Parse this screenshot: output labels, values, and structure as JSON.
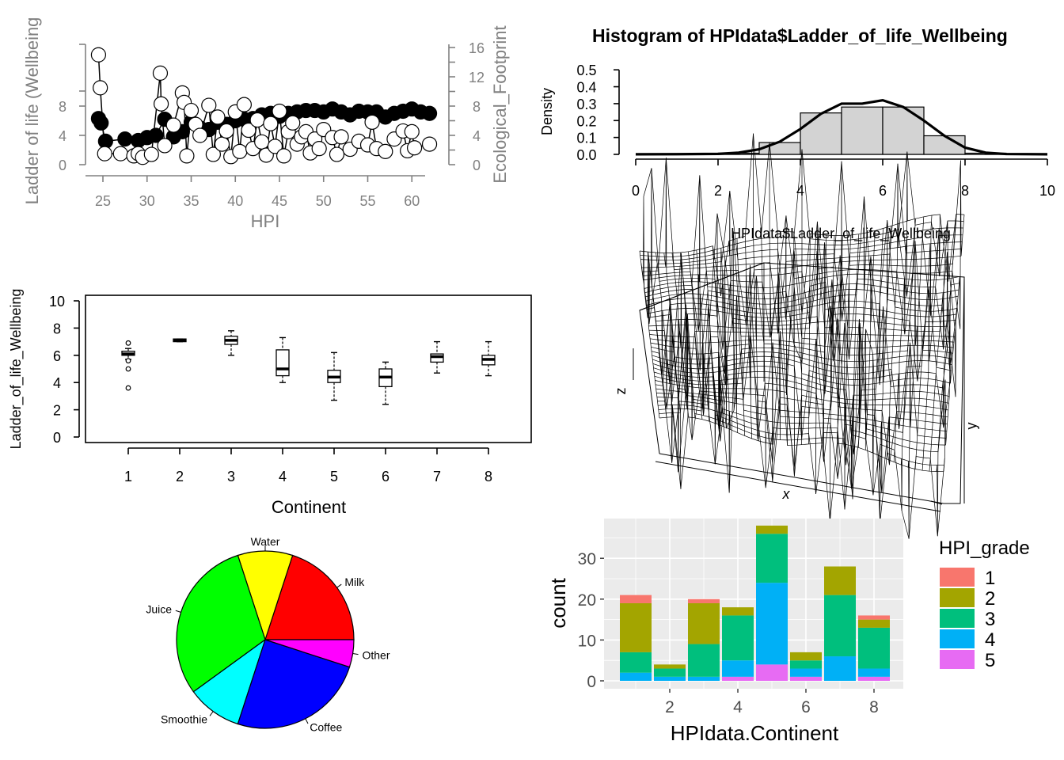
{
  "chart_data": [
    {
      "type": "scatter",
      "panel": "dual-axis-hpi",
      "xlabel": "HPI",
      "ylabel_left": "Ladder of life (Wellbeing",
      "ylabel_right": "Ecological_Footprint",
      "xticks": [
        "25",
        "30",
        "35",
        "40",
        "45",
        "50",
        "55",
        "60"
      ],
      "yticks_left": [
        "0",
        "4",
        "8"
      ],
      "yticks_right": [
        "0",
        "4",
        "8",
        "12",
        "16"
      ],
      "xlim": [
        23,
        63
      ],
      "ylim_left": [
        0,
        16
      ],
      "ylim_right": [
        0,
        16
      ],
      "series": [
        {
          "name": "Ladder_of_life_Wellbeing",
          "color": "#000000",
          "points": [
            [
              24.5,
              6.3
            ],
            [
              24.8,
              5.7
            ],
            [
              25.3,
              3.2
            ],
            [
              27.5,
              3.5
            ],
            [
              29,
              3.3
            ],
            [
              30,
              3.7
            ],
            [
              31,
              4
            ],
            [
              32,
              6.2
            ],
            [
              33,
              3.8
            ],
            [
              34,
              4.5
            ],
            [
              35,
              5.8
            ],
            [
              36,
              5
            ],
            [
              37,
              4.8
            ],
            [
              38,
              5.8
            ],
            [
              39,
              5.5
            ],
            [
              40,
              6
            ],
            [
              41,
              6.2
            ],
            [
              42,
              6.3
            ],
            [
              43,
              6.8
            ],
            [
              44,
              7
            ],
            [
              45,
              6.6
            ],
            [
              46,
              7
            ],
            [
              47,
              7.2
            ],
            [
              48,
              7.4
            ],
            [
              49,
              7.4
            ],
            [
              50,
              7.2
            ],
            [
              51,
              7.6
            ],
            [
              52,
              7.2
            ],
            [
              53,
              6.8
            ],
            [
              54,
              7.3
            ],
            [
              55,
              7.2
            ],
            [
              56,
              7.2
            ],
            [
              57,
              6.5
            ],
            [
              58,
              7
            ],
            [
              59,
              7.3
            ],
            [
              60,
              7.6
            ],
            [
              61,
              7.2
            ],
            [
              62,
              7
            ]
          ]
        },
        {
          "name": "Ecological_Footprint",
          "color": "#ffffff",
          "points": [
            [
              24.5,
              15
            ],
            [
              24.7,
              10.5
            ],
            [
              25.2,
              1.5
            ],
            [
              27,
              1.5
            ],
            [
              28.5,
              1.2
            ],
            [
              29,
              1.5
            ],
            [
              29.5,
              1
            ],
            [
              30.5,
              1.4
            ],
            [
              31.5,
              12.5
            ],
            [
              31.6,
              8.3
            ],
            [
              32,
              2.6
            ],
            [
              33,
              5.4
            ],
            [
              34,
              9.8
            ],
            [
              34.2,
              8.5
            ],
            [
              34.5,
              1.2
            ],
            [
              35,
              7.4
            ],
            [
              35.5,
              5.5
            ],
            [
              36,
              4
            ],
            [
              37,
              8.1
            ],
            [
              37.5,
              1.4
            ],
            [
              38,
              6.5
            ],
            [
              38.5,
              2.8
            ],
            [
              39,
              4.6
            ],
            [
              39.5,
              1.1
            ],
            [
              40,
              7.2
            ],
            [
              40.5,
              1.8
            ],
            [
              41,
              8.2
            ],
            [
              41.5,
              4.7
            ],
            [
              42,
              2.2
            ],
            [
              42.5,
              6.1
            ],
            [
              43,
              3.1
            ],
            [
              43.5,
              1.3
            ],
            [
              44,
              5.6
            ],
            [
              44.5,
              2.5
            ],
            [
              45,
              7.3
            ],
            [
              45.5,
              1.2
            ],
            [
              46,
              4.5
            ],
            [
              46.5,
              5.7
            ],
            [
              47,
              2.8
            ],
            [
              47.5,
              3.8
            ],
            [
              48,
              4.5
            ],
            [
              48.5,
              1.6
            ],
            [
              49,
              3.5
            ],
            [
              49.5,
              2.2
            ],
            [
              50,
              4.8
            ],
            [
              51,
              3.7
            ],
            [
              51.5,
              1.4
            ],
            [
              52,
              3.8
            ],
            [
              53,
              2.1
            ],
            [
              54,
              3.2
            ],
            [
              55,
              2.7
            ],
            [
              55.5,
              5.8
            ],
            [
              56,
              2.2
            ],
            [
              57,
              1.8
            ],
            [
              58,
              3.5
            ],
            [
              59,
              4.6
            ],
            [
              59.5,
              1.9
            ],
            [
              60,
              4.5
            ],
            [
              60.3,
              2.3
            ],
            [
              62,
              2.8
            ]
          ]
        }
      ]
    },
    {
      "type": "bar",
      "panel": "histogram",
      "title": "Histogram of HPIdata$Ladder_of_life_Wellbeing",
      "xlabel": "HPIdata$Ladder_of_life_Wellbeing",
      "ylabel": "Density",
      "xticks": [
        "0",
        "2",
        "4",
        "6",
        "8",
        "10"
      ],
      "yticks": [
        "0.0",
        "0.1",
        "0.2",
        "0.3",
        "0.4",
        "0.5"
      ],
      "xlim": [
        0,
        10
      ],
      "ylim": [
        0,
        0.5
      ],
      "bins": [
        [
          2,
          3,
          0.007
        ],
        [
          3,
          4,
          0.07
        ],
        [
          4,
          5,
          0.245
        ],
        [
          5,
          6,
          0.28
        ],
        [
          6,
          7,
          0.28
        ],
        [
          7,
          8,
          0.11
        ],
        [
          8,
          9,
          0.007
        ]
      ],
      "density_curve": [
        [
          0,
          0.0005
        ],
        [
          1,
          0.001
        ],
        [
          2,
          0.003
        ],
        [
          2.5,
          0.01
        ],
        [
          3,
          0.03
        ],
        [
          3.5,
          0.075
        ],
        [
          4,
          0.15
        ],
        [
          4.5,
          0.24
        ],
        [
          5,
          0.3
        ],
        [
          5.5,
          0.3
        ],
        [
          6,
          0.32
        ],
        [
          6.5,
          0.28
        ],
        [
          7,
          0.2
        ],
        [
          7.5,
          0.11
        ],
        [
          8,
          0.04
        ],
        [
          8.5,
          0.01
        ],
        [
          9,
          0.002
        ],
        [
          10,
          0.0005
        ]
      ]
    },
    {
      "type": "box",
      "panel": "boxplot",
      "xlabel": "Continent",
      "ylabel": "Ladder_of_life_Wellbeing",
      "categories": [
        "1",
        "2",
        "3",
        "4",
        "5",
        "6",
        "7",
        "8"
      ],
      "yticks": [
        "0",
        "2",
        "4",
        "6",
        "8",
        "10"
      ],
      "ylim": [
        0,
        10
      ],
      "boxes": [
        {
          "min": 5.7,
          "q1": 6.0,
          "median": 6.1,
          "q3": 6.3,
          "max": 6.5,
          "outliers": [
            6.9,
            5.6,
            5.0,
            3.6
          ]
        },
        {
          "min": 7.0,
          "q1": 7.0,
          "median": 7.1,
          "q3": 7.2,
          "max": 7.2,
          "outliers": []
        },
        {
          "min": 6.0,
          "q1": 6.8,
          "median": 7.1,
          "q3": 7.4,
          "max": 7.8,
          "outliers": []
        },
        {
          "min": 4.0,
          "q1": 4.5,
          "median": 5.0,
          "q3": 6.4,
          "max": 7.3,
          "outliers": []
        },
        {
          "min": 2.7,
          "q1": 4.0,
          "median": 4.4,
          "q3": 4.9,
          "max": 6.2,
          "outliers": []
        },
        {
          "min": 2.4,
          "q1": 3.7,
          "median": 4.4,
          "q3": 5.0,
          "max": 5.5,
          "outliers": []
        },
        {
          "min": 4.7,
          "q1": 5.5,
          "median": 5.9,
          "q3": 6.1,
          "max": 7.0,
          "outliers": []
        },
        {
          "min": 4.5,
          "q1": 5.3,
          "median": 5.7,
          "q3": 6.0,
          "max": 7.0,
          "outliers": []
        }
      ]
    },
    {
      "type": "surface",
      "panel": "persp-3d",
      "xlabel": "x",
      "ylabel": "y",
      "zlabel": "z"
    },
    {
      "type": "pie",
      "panel": "pie",
      "labels": [
        "Milk",
        "Water",
        "Juice",
        "Smoothie",
        "Coffee",
        "Other"
      ],
      "values": [
        20,
        10,
        30,
        10,
        25,
        5
      ],
      "colors": [
        "#ff0000",
        "#ffff00",
        "#00ff00",
        "#00ffff",
        "#0000ff",
        "#ff00ff"
      ]
    },
    {
      "type": "bar",
      "panel": "stacked-bar",
      "xlabel": "HPIdata.Continent",
      "ylabel": "count",
      "legend_title": "HPI_grade",
      "legend_position": "right",
      "xticks": [
        "2",
        "4",
        "6",
        "8"
      ],
      "yticks": [
        "0",
        "10",
        "20",
        "30"
      ],
      "ylim": [
        0,
        38
      ],
      "categories": [
        "1",
        "2",
        "3",
        "4",
        "5",
        "6",
        "7",
        "8"
      ],
      "series": [
        {
          "name": "1",
          "color": "#F8766D",
          "values": [
            2,
            0,
            1,
            0,
            0,
            0,
            0,
            1
          ]
        },
        {
          "name": "2",
          "color": "#A3A500",
          "values": [
            12,
            1,
            10,
            2,
            2,
            2,
            7,
            2
          ]
        },
        {
          "name": "3",
          "color": "#00BF7D",
          "values": [
            5,
            2,
            8,
            11,
            12,
            2,
            15,
            10
          ]
        },
        {
          "name": "4",
          "color": "#00B0F6",
          "values": [
            2,
            1,
            1,
            4,
            20,
            2,
            6,
            2
          ]
        },
        {
          "name": "5",
          "color": "#E76BF3",
          "values": [
            0,
            0,
            0,
            1,
            4,
            1,
            0,
            1
          ]
        }
      ]
    }
  ]
}
